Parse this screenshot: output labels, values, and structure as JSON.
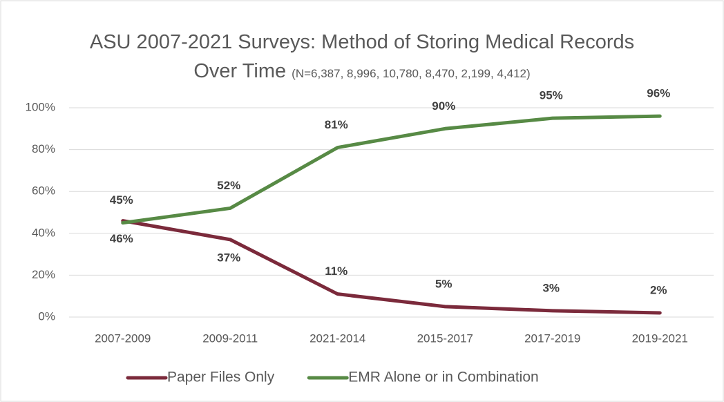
{
  "chart_data": {
    "type": "line",
    "title": "ASU 2007-2021 Surveys: Method of Storing Medical Records Over Time",
    "subtitle": "(N=6,387, 8,996, 10,780, 8,470, 2,199, 4,412)",
    "categories": [
      "2007-2009",
      "2009-2011",
      "2021-2014",
      "2015-2017",
      "2017-2019",
      "2019-2021"
    ],
    "series": [
      {
        "name": "Paper Files Only",
        "color": "#7b2a3b",
        "values": [
          46,
          37,
          11,
          5,
          3,
          2
        ],
        "value_labels": [
          "46%",
          "37%",
          "11%",
          "5%",
          "3%",
          "2%"
        ]
      },
      {
        "name": "EMR Alone or in Combination",
        "color": "#578a45",
        "values": [
          45,
          52,
          81,
          90,
          95,
          96
        ],
        "value_labels": [
          "45%",
          "52%",
          "81%",
          "90%",
          "95%",
          "96%"
        ]
      }
    ],
    "ylim": [
      0,
      100
    ],
    "yticks": [
      {
        "value": 0,
        "label": "0%"
      },
      {
        "value": 20,
        "label": "20%"
      },
      {
        "value": 40,
        "label": "40%"
      },
      {
        "value": 60,
        "label": "60%"
      },
      {
        "value": 80,
        "label": "80%"
      },
      {
        "value": 100,
        "label": "100%"
      }
    ],
    "grid": true,
    "legend": "bottom"
  }
}
